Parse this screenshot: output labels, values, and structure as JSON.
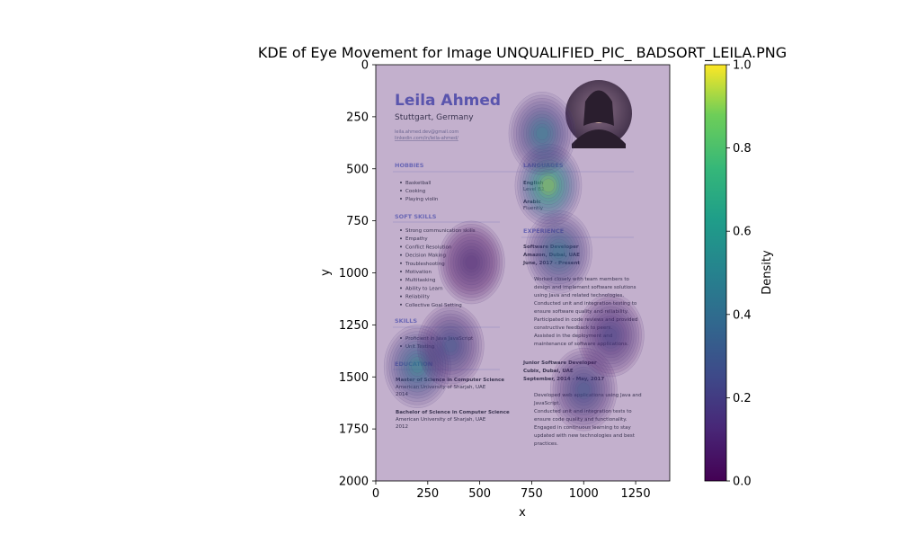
{
  "chart_data": {
    "type": "heatmap",
    "title": "KDE of Eye Movement for Image UNQUALIFIED_PIC_ BADSORT_LEILA.PNG",
    "xlabel": "x",
    "ylabel": "y",
    "xlim": [
      0,
      1414
    ],
    "ylim": [
      2000,
      0
    ],
    "y_inverted": true,
    "x_ticks": [
      0,
      250,
      500,
      750,
      1000,
      1250
    ],
    "y_ticks": [
      0,
      250,
      500,
      750,
      1000,
      1250,
      1500,
      1750,
      2000
    ],
    "colorbar": {
      "label": "Density",
      "range": [
        0,
        1
      ],
      "ticks": [
        0.0,
        0.2,
        0.4,
        0.6,
        0.8,
        1.0
      ],
      "tick_labels": [
        "0.0",
        "0.2",
        "0.4",
        "0.6",
        "0.8",
        "1.0"
      ],
      "colormap": "viridis"
    },
    "density_peaks": [
      {
        "x": 830,
        "y": 580,
        "density": 1.0
      },
      {
        "x": 800,
        "y": 330,
        "density": 0.55
      },
      {
        "x": 880,
        "y": 900,
        "density": 0.5
      },
      {
        "x": 200,
        "y": 1450,
        "density": 0.6
      },
      {
        "x": 1000,
        "y": 1560,
        "density": 0.35
      },
      {
        "x": 360,
        "y": 1350,
        "density": 0.35
      },
      {
        "x": 1130,
        "y": 1300,
        "density": 0.25
      },
      {
        "x": 460,
        "y": 950,
        "density": 0.12
      }
    ],
    "grid": false,
    "legend": "none"
  },
  "resume": {
    "name": "Leila Ahmed",
    "location": "Stuttgart, Germany",
    "email": "leila.ahmed.dev@gmail.com",
    "linkedin": "linkedin.com/in/leila-ahmed/",
    "hobbies_title": "HOBBIES",
    "hobbies": [
      "Basketball",
      "Cooking",
      "Playing violin"
    ],
    "soft_skills_title": "SOFT SKILLS",
    "soft_skills": [
      "Strong communication skills",
      "Empathy",
      "Conflict Resolution",
      "Decision Making",
      "Troubleshooting",
      "Motivation",
      "Multitasking",
      "Ability to Learn",
      "Reliability",
      "Collective Goal Setting"
    ],
    "skills_title": "SKILLS",
    "skills": [
      "Proficient in Java JavaScript",
      "Unit Testing"
    ],
    "education_title": "EDUCATION",
    "education": [
      {
        "degree": "Master of Science in Computer Science",
        "school": "American University of Sharjah, UAE",
        "year": "2014"
      },
      {
        "degree": "Bachelor of Science in Computer Science",
        "school": "American University of Sharjah, UAE",
        "year": "2012"
      }
    ],
    "languages_title": "LANGUAGES",
    "languages": [
      {
        "name": "English",
        "level": "Level B2"
      },
      {
        "name": "Arabic",
        "level": "Fluently"
      }
    ],
    "experience_title": "EXPERIENCE",
    "jobs": [
      {
        "title": "Software Developer",
        "company": "Amazon, Dubai, UAE",
        "dates": "June, 2017 - Present",
        "bullets": [
          "Worked closely with team members to",
          "design and implement software solutions",
          "using Java and related technologies.",
          "Conducted unit and integration testing to",
          "ensure software quality and reliability.",
          "Participated in code reviews and provided",
          "constructive feedback to peers.",
          "Assisted in the deployment and",
          "maintenance of software applications."
        ]
      },
      {
        "title": "Junior Software Developer",
        "company": "Cubix, Dubai, UAE",
        "dates": "September, 2014 - May, 2017",
        "bullets": [
          "Developed web applications using Java and",
          "JavaScript.",
          "Conducted unit and integration tests to",
          "ensure code quality and functionality.",
          "Engaged in continuous learning to stay",
          "updated with new technologies and best",
          "practices."
        ]
      }
    ]
  }
}
